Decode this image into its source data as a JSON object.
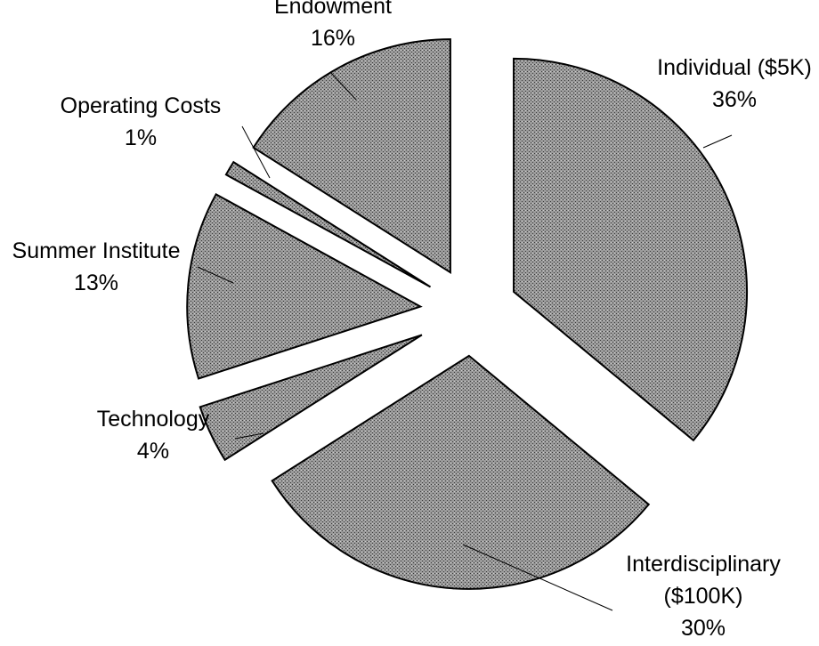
{
  "chart_data": {
    "type": "pie",
    "title": "",
    "start_angle_deg": 0,
    "direction": "clockwise",
    "exploded": true,
    "slices": [
      {
        "label": "Individual ($5K)",
        "value": 36,
        "pct_label": "36%"
      },
      {
        "label": "Interdisciplinary ($100K)",
        "label_lines": [
          "Interdisciplinary",
          "($100K)"
        ],
        "value": 30,
        "pct_label": "30%"
      },
      {
        "label": "Technology",
        "value": 4,
        "pct_label": "4%"
      },
      {
        "label": "Summer Institute",
        "value": 13,
        "pct_label": "13%"
      },
      {
        "label": "Operating Costs",
        "value": 1,
        "pct_label": "1%"
      },
      {
        "label": "Endowment",
        "value": 16,
        "pct_label": "16%"
      }
    ],
    "fill_color": "#8c8c8c",
    "legend": "none",
    "labels_outside_with_leader_lines": true
  }
}
